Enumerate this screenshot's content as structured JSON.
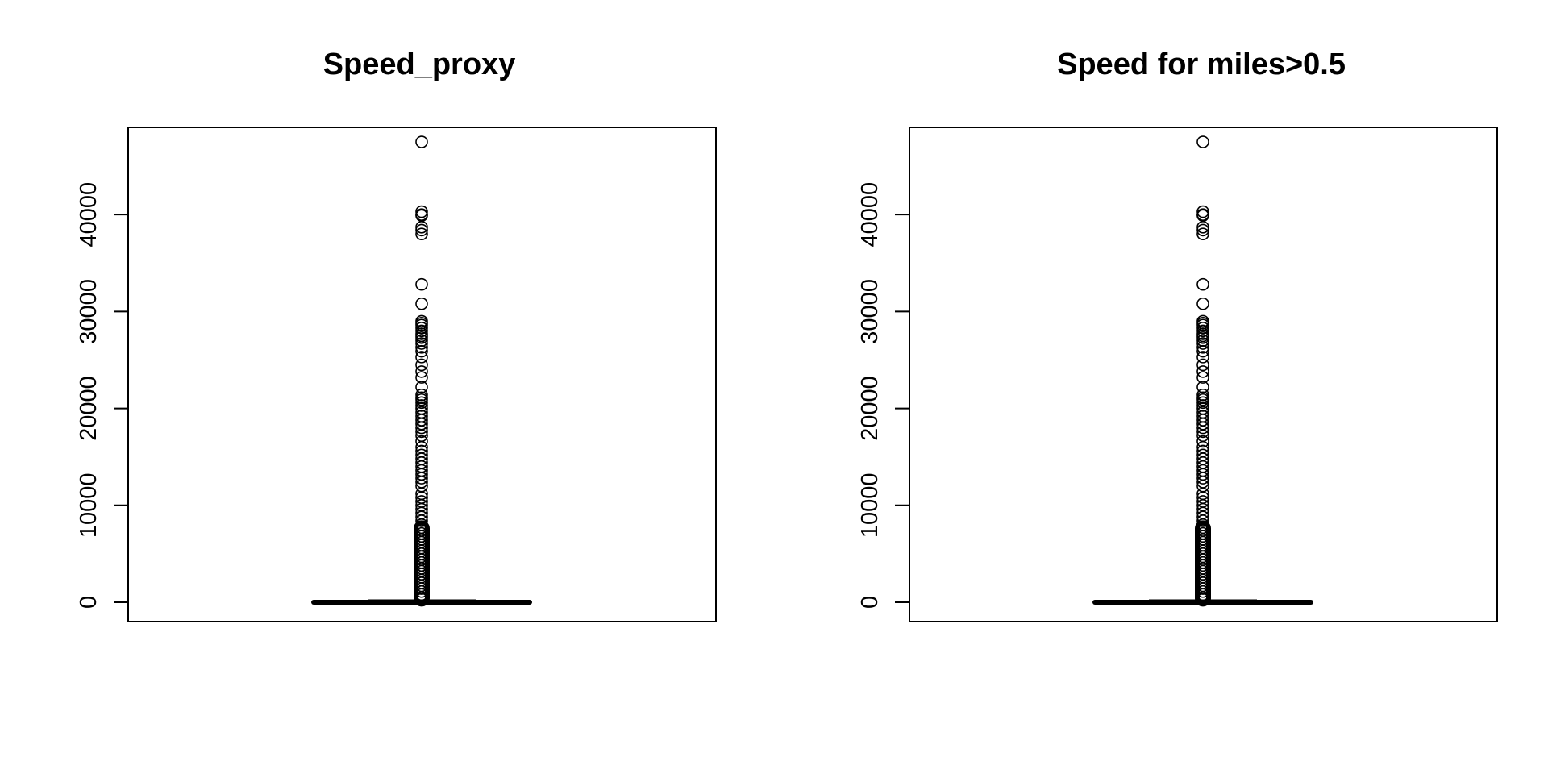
{
  "chart_data": [
    {
      "type": "boxplot",
      "title": "Speed_proxy",
      "xlabel": "",
      "ylabel": "",
      "ylim": [
        -2000,
        49000
      ],
      "yticks": [
        0,
        10000,
        20000,
        30000,
        40000
      ],
      "box": {
        "min": 0,
        "q1": 0,
        "median": 0,
        "q3": 0,
        "max": 200
      },
      "outliers": [
        47500,
        40300,
        40000,
        39900,
        38700,
        38400,
        38000,
        32800,
        30800,
        29000,
        28800,
        28600,
        28300,
        28000,
        27700,
        27500,
        27300,
        27000,
        26700,
        26300,
        25900,
        25300,
        24500,
        23800,
        23200,
        22200,
        21400,
        21100,
        20900,
        20600,
        20300,
        20000,
        19600,
        19200,
        18800,
        18400,
        18000,
        17600,
        17200,
        16600,
        16000,
        15600,
        15200,
        14800,
        14400,
        14000,
        13600,
        13200,
        12800,
        12400,
        12000,
        11200,
        10800,
        10400,
        10000,
        9600,
        9200,
        8800,
        8400,
        8000,
        7700,
        7400,
        7100,
        6800,
        6500,
        6200,
        5900,
        5600,
        5300,
        5000,
        4700,
        4400,
        4100,
        3800,
        3500,
        3200,
        2900,
        2600,
        2300,
        2000,
        1700,
        1400,
        1100,
        800,
        500,
        300
      ]
    },
    {
      "type": "boxplot",
      "title": "Speed for miles>0.5",
      "xlabel": "",
      "ylabel": "",
      "ylim": [
        -2000,
        49000
      ],
      "yticks": [
        0,
        10000,
        20000,
        30000,
        40000
      ],
      "box": {
        "min": 0,
        "q1": 0,
        "median": 0,
        "q3": 0,
        "max": 200
      },
      "outliers": [
        47500,
        40300,
        40000,
        39900,
        38700,
        38400,
        38000,
        32800,
        30800,
        29000,
        28800,
        28600,
        28300,
        28000,
        27700,
        27500,
        27300,
        27000,
        26700,
        26300,
        25900,
        25300,
        24500,
        23800,
        23200,
        22200,
        21400,
        21100,
        20900,
        20600,
        20300,
        20000,
        19600,
        19200,
        18800,
        18400,
        18000,
        17600,
        17200,
        16600,
        16000,
        15600,
        15200,
        14800,
        14400,
        14000,
        13600,
        13200,
        12800,
        12400,
        12000,
        11200,
        10800,
        10400,
        10000,
        9600,
        9200,
        8800,
        8400,
        8000,
        7700,
        7400,
        7100,
        6800,
        6500,
        6200,
        5900,
        5600,
        5300,
        5000,
        4700,
        4400,
        4100,
        3800,
        3500,
        3200,
        2900,
        2600,
        2300,
        2000,
        1700,
        1400,
        1100,
        800,
        500,
        300
      ]
    }
  ]
}
